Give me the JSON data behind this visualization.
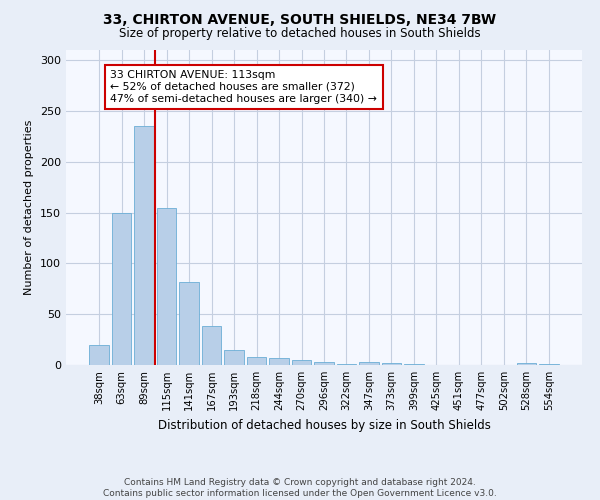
{
  "title1": "33, CHIRTON AVENUE, SOUTH SHIELDS, NE34 7BW",
  "title2": "Size of property relative to detached houses in South Shields",
  "xlabel": "Distribution of detached houses by size in South Shields",
  "ylabel": "Number of detached properties",
  "categories": [
    "38sqm",
    "63sqm",
    "89sqm",
    "115sqm",
    "141sqm",
    "167sqm",
    "193sqm",
    "218sqm",
    "244sqm",
    "270sqm",
    "296sqm",
    "322sqm",
    "347sqm",
    "373sqm",
    "399sqm",
    "425sqm",
    "451sqm",
    "477sqm",
    "502sqm",
    "528sqm",
    "554sqm"
  ],
  "values": [
    20,
    150,
    235,
    155,
    82,
    38,
    15,
    8,
    7,
    5,
    3,
    1,
    3,
    2,
    1,
    0,
    0,
    0,
    0,
    2,
    1
  ],
  "bar_color": "#b8cfe8",
  "bar_edge_color": "#6baed6",
  "vline_x": 2.5,
  "vline_color": "#cc0000",
  "annotation_text": "33 CHIRTON AVENUE: 113sqm\n← 52% of detached houses are smaller (372)\n47% of semi-detached houses are larger (340) →",
  "annotation_box_color": "#ffffff",
  "annotation_box_edge": "#cc0000",
  "ylim": [
    0,
    310
  ],
  "yticks": [
    0,
    50,
    100,
    150,
    200,
    250,
    300
  ],
  "footnote": "Contains HM Land Registry data © Crown copyright and database right 2024.\nContains public sector information licensed under the Open Government Licence v3.0.",
  "bg_color": "#e8eef8",
  "plot_bg_color": "#f5f8ff",
  "grid_color": "#c5cfe0"
}
